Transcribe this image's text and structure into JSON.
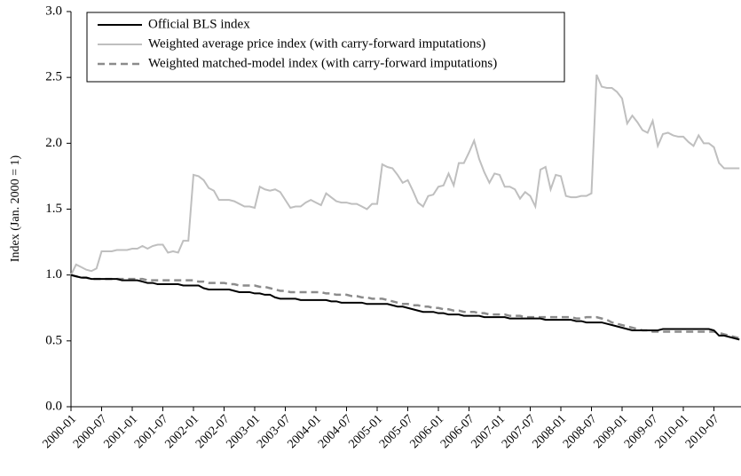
{
  "chart_data": {
    "type": "line",
    "y_label": "Index (Jan. 2000 = 1)",
    "categories": [
      "2000-01",
      null,
      null,
      null,
      null,
      null,
      "2000-07",
      null,
      null,
      null,
      null,
      null,
      "2001-01",
      null,
      null,
      null,
      null,
      null,
      "2001-07",
      null,
      null,
      null,
      null,
      null,
      "2002-01",
      null,
      null,
      null,
      null,
      null,
      "2002-07",
      null,
      null,
      null,
      null,
      null,
      "2003-01",
      null,
      null,
      null,
      null,
      null,
      "2003-07",
      null,
      null,
      null,
      null,
      null,
      "2004-01",
      null,
      null,
      null,
      null,
      null,
      "2004-07",
      null,
      null,
      null,
      null,
      null,
      "2005-01",
      null,
      null,
      null,
      null,
      null,
      "2005-07",
      null,
      null,
      null,
      null,
      null,
      "2006-01",
      null,
      null,
      null,
      null,
      null,
      "2006-07",
      null,
      null,
      null,
      null,
      null,
      "2007-01",
      null,
      null,
      null,
      null,
      null,
      "2007-07",
      null,
      null,
      null,
      null,
      null,
      "2008-01",
      null,
      null,
      null,
      null,
      null,
      "2008-07",
      null,
      null,
      null,
      null,
      null,
      "2009-01",
      null,
      null,
      null,
      null,
      null,
      "2009-07",
      null,
      null,
      null,
      null,
      null,
      "2010-01",
      null,
      null,
      null,
      null,
      null,
      "2010-07",
      null,
      null,
      null,
      null,
      null
    ],
    "series": [
      {
        "name": "Official BLS index",
        "color": "#000000",
        "dash": false,
        "values": [
          1.0,
          0.99,
          0.98,
          0.98,
          0.97,
          0.97,
          0.97,
          0.97,
          0.97,
          0.97,
          0.96,
          0.96,
          0.96,
          0.96,
          0.95,
          0.94,
          0.94,
          0.93,
          0.93,
          0.93,
          0.93,
          0.93,
          0.92,
          0.92,
          0.92,
          0.92,
          0.9,
          0.89,
          0.89,
          0.89,
          0.89,
          0.89,
          0.88,
          0.87,
          0.87,
          0.87,
          0.86,
          0.86,
          0.85,
          0.85,
          0.83,
          0.82,
          0.82,
          0.82,
          0.82,
          0.81,
          0.81,
          0.81,
          0.81,
          0.81,
          0.81,
          0.8,
          0.8,
          0.79,
          0.79,
          0.79,
          0.79,
          0.79,
          0.78,
          0.78,
          0.78,
          0.78,
          0.78,
          0.77,
          0.76,
          0.76,
          0.75,
          0.74,
          0.73,
          0.72,
          0.72,
          0.72,
          0.71,
          0.71,
          0.7,
          0.7,
          0.7,
          0.69,
          0.69,
          0.69,
          0.69,
          0.68,
          0.68,
          0.68,
          0.68,
          0.68,
          0.67,
          0.67,
          0.67,
          0.67,
          0.67,
          0.67,
          0.67,
          0.66,
          0.66,
          0.66,
          0.66,
          0.66,
          0.66,
          0.65,
          0.65,
          0.64,
          0.64,
          0.64,
          0.64,
          0.63,
          0.62,
          0.61,
          0.6,
          0.59,
          0.58,
          0.58,
          0.58,
          0.58,
          0.58,
          0.58,
          0.59,
          0.59,
          0.59,
          0.59,
          0.59,
          0.59,
          0.59,
          0.59,
          0.59,
          0.59,
          0.58,
          0.54,
          0.54,
          0.53,
          0.52,
          0.51
        ]
      },
      {
        "name": "Weighted average price index (with carry-forward imputations)",
        "color": "#bfbfbf",
        "dash": false,
        "values": [
          1.0,
          1.08,
          1.06,
          1.04,
          1.03,
          1.05,
          1.18,
          1.18,
          1.18,
          1.19,
          1.19,
          1.19,
          1.2,
          1.2,
          1.22,
          1.2,
          1.22,
          1.23,
          1.23,
          1.17,
          1.18,
          1.17,
          1.26,
          1.26,
          1.76,
          1.75,
          1.72,
          1.66,
          1.64,
          1.57,
          1.57,
          1.57,
          1.56,
          1.54,
          1.52,
          1.52,
          1.51,
          1.67,
          1.65,
          1.64,
          1.65,
          1.63,
          1.57,
          1.51,
          1.52,
          1.52,
          1.55,
          1.57,
          1.55,
          1.53,
          1.62,
          1.59,
          1.56,
          1.55,
          1.55,
          1.54,
          1.54,
          1.52,
          1.5,
          1.54,
          1.54,
          1.84,
          1.82,
          1.81,
          1.76,
          1.7,
          1.72,
          1.64,
          1.55,
          1.52,
          1.6,
          1.61,
          1.67,
          1.68,
          1.77,
          1.68,
          1.85,
          1.85,
          1.93,
          2.02,
          1.88,
          1.78,
          1.7,
          1.77,
          1.76,
          1.67,
          1.67,
          1.65,
          1.58,
          1.63,
          1.6,
          1.52,
          1.8,
          1.82,
          1.65,
          1.76,
          1.75,
          1.6,
          1.59,
          1.59,
          1.6,
          1.6,
          1.62,
          2.52,
          2.43,
          2.42,
          2.42,
          2.39,
          2.34,
          2.15,
          2.21,
          2.16,
          2.1,
          2.08,
          2.17,
          1.98,
          2.07,
          2.08,
          2.06,
          2.05,
          2.05,
          2.01,
          1.98,
          2.06,
          2.0,
          2.0,
          1.97,
          1.85,
          1.81,
          1.81,
          1.81,
          1.81
        ]
      },
      {
        "name": "Weighted matched-model index (with carry-forward imputations)",
        "color": "#8c8c8c",
        "dash": true,
        "values": [
          1.0,
          0.99,
          0.98,
          0.98,
          0.97,
          0.97,
          0.97,
          0.97,
          0.97,
          0.97,
          0.97,
          0.97,
          0.97,
          0.97,
          0.97,
          0.96,
          0.96,
          0.96,
          0.96,
          0.96,
          0.96,
          0.96,
          0.96,
          0.96,
          0.96,
          0.95,
          0.95,
          0.94,
          0.94,
          0.94,
          0.94,
          0.93,
          0.93,
          0.92,
          0.92,
          0.92,
          0.92,
          0.91,
          0.91,
          0.9,
          0.89,
          0.88,
          0.88,
          0.87,
          0.87,
          0.87,
          0.87,
          0.87,
          0.87,
          0.87,
          0.86,
          0.86,
          0.85,
          0.85,
          0.85,
          0.84,
          0.84,
          0.83,
          0.83,
          0.82,
          0.82,
          0.82,
          0.81,
          0.8,
          0.79,
          0.78,
          0.78,
          0.77,
          0.77,
          0.76,
          0.76,
          0.75,
          0.75,
          0.74,
          0.74,
          0.73,
          0.73,
          0.72,
          0.72,
          0.72,
          0.71,
          0.71,
          0.7,
          0.7,
          0.7,
          0.7,
          0.69,
          0.69,
          0.69,
          0.68,
          0.68,
          0.68,
          0.68,
          0.68,
          0.68,
          0.68,
          0.68,
          0.68,
          0.68,
          0.67,
          0.67,
          0.68,
          0.68,
          0.68,
          0.67,
          0.66,
          0.64,
          0.63,
          0.62,
          0.61,
          0.6,
          0.59,
          0.58,
          0.58,
          0.57,
          0.57,
          0.57,
          0.57,
          0.57,
          0.57,
          0.57,
          0.57,
          0.57,
          0.57,
          0.57,
          0.57,
          0.57,
          0.56,
          0.55,
          0.54,
          0.53,
          0.52
        ]
      }
    ],
    "ylim": [
      0,
      3
    ],
    "yticks": [
      {
        "value": 0,
        "label": "0.0"
      },
      0.5,
      {
        "value": 1,
        "label": "1.0"
      },
      1.5,
      {
        "value": 2,
        "label": "2.0"
      },
      2.5,
      {
        "value": 3,
        "label": "3.0"
      }
    ],
    "grid": false,
    "legend": "top-left"
  }
}
